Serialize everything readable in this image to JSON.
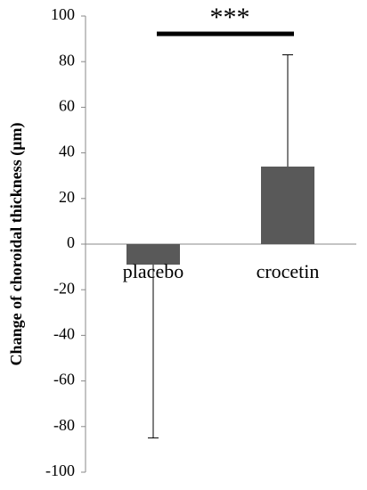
{
  "chart_data": {
    "type": "bar",
    "y_label": "Change of choroidal thickness (μm)",
    "categories": [
      "placebo",
      "crocetin"
    ],
    "values": [
      -9,
      34
    ],
    "errors": [
      76,
      49
    ],
    "error_direction": [
      "down",
      "up"
    ],
    "color": "#595959",
    "ylim": [
      -100,
      100
    ],
    "yticks": [
      -100,
      -80,
      -60,
      -40,
      -20,
      0,
      20,
      40,
      60,
      80,
      100
    ],
    "annotation": "***"
  }
}
